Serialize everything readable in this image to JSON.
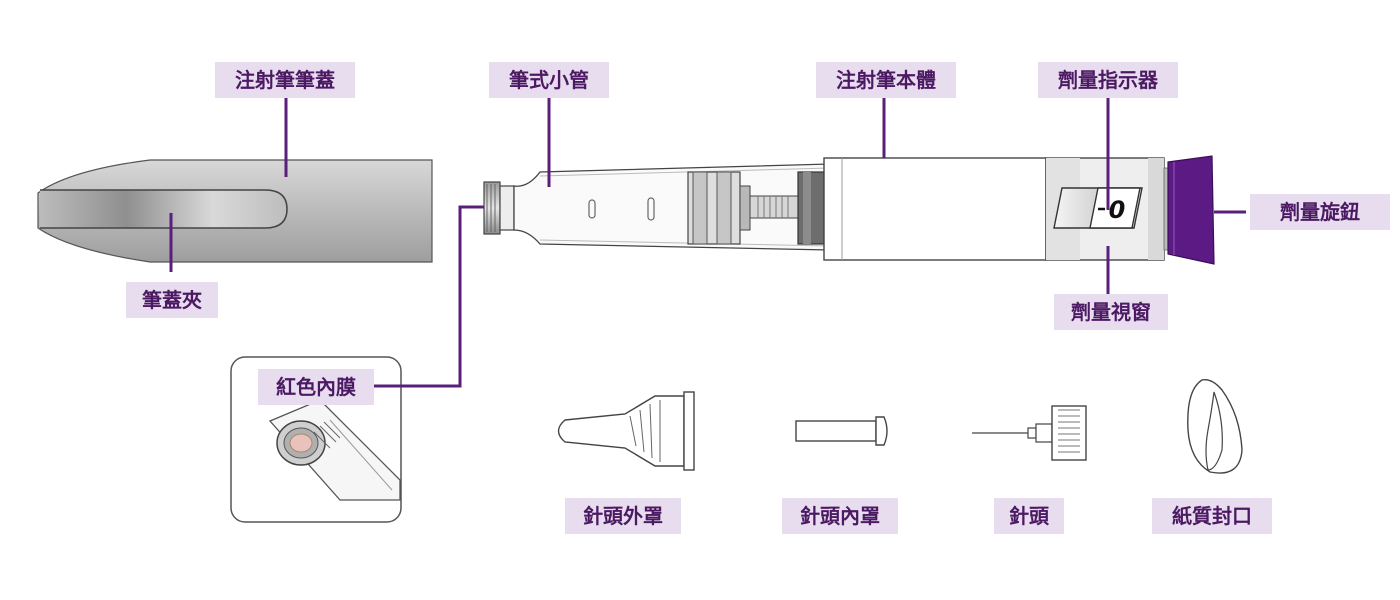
{
  "labels": {
    "pen_cap": "注射筆筆蓋",
    "cartridge": "筆式小管",
    "pen_body": "注射筆本體",
    "dose_indicator": "劑量指示器",
    "dose_knob": "劑量旋鈕",
    "dose_window": "劑量視窗",
    "pen_clip": "筆蓋夾",
    "red_membrane": "紅色內膜",
    "outer_needle_cap": "針頭外罩",
    "inner_needle_cap": "針頭內罩",
    "needle": "針頭",
    "paper_seal": "紙質封口"
  },
  "dose_window": {
    "value": "0"
  },
  "colors": {
    "label_bg": "#e8dcef",
    "label_text": "#4b1a63",
    "leader_line": "#5a1f7a",
    "knob": "#5b1a84"
  }
}
